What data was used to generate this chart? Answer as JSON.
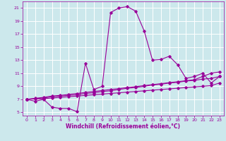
{
  "background_color": "#cce8ec",
  "grid_color": "#ffffff",
  "line_color": "#990099",
  "xlabel": "Windchill (Refroidissement éolien,°C)",
  "xlim": [
    -0.5,
    23.5
  ],
  "ylim": [
    4.5,
    22
  ],
  "yticks": [
    5,
    7,
    9,
    11,
    13,
    15,
    17,
    19,
    21
  ],
  "xticks": [
    0,
    1,
    2,
    3,
    4,
    5,
    6,
    7,
    8,
    9,
    10,
    11,
    12,
    13,
    14,
    15,
    16,
    17,
    18,
    19,
    20,
    21,
    22,
    23
  ],
  "series1_x": [
    0,
    1,
    2,
    3,
    4,
    5,
    6,
    7,
    8,
    9,
    10,
    11,
    12,
    13,
    14,
    15,
    16,
    17,
    18,
    19,
    20,
    21,
    22,
    23
  ],
  "series1_y": [
    7.0,
    6.7,
    7.0,
    5.8,
    5.6,
    5.6,
    5.1,
    12.5,
    8.5,
    9.0,
    20.3,
    21.0,
    21.2,
    20.5,
    17.5,
    13.0,
    13.1,
    13.6,
    12.3,
    10.2,
    10.5,
    11.0,
    9.5,
    10.5
  ],
  "series2_x": [
    0,
    1,
    2,
    3,
    4,
    5,
    6,
    7,
    8,
    9,
    10,
    11,
    12,
    13,
    14,
    15,
    16,
    17,
    18,
    19,
    20,
    21,
    22,
    23
  ],
  "series2_y": [
    7.0,
    7.1,
    7.2,
    7.4,
    7.5,
    7.6,
    7.7,
    7.9,
    8.0,
    8.2,
    8.3,
    8.5,
    8.7,
    8.8,
    9.0,
    9.2,
    9.3,
    9.5,
    9.6,
    9.8,
    9.9,
    10.1,
    10.2,
    10.5
  ],
  "series3_x": [
    0,
    1,
    2,
    3,
    4,
    5,
    6,
    7,
    8,
    9,
    10,
    11,
    12,
    13,
    14,
    15,
    16,
    17,
    18,
    19,
    20,
    21,
    22,
    23
  ],
  "series3_y": [
    7.0,
    7.05,
    7.1,
    7.2,
    7.3,
    7.4,
    7.5,
    7.6,
    7.7,
    7.8,
    7.9,
    8.0,
    8.1,
    8.2,
    8.3,
    8.4,
    8.5,
    8.6,
    8.7,
    8.8,
    8.9,
    9.0,
    9.1,
    9.5
  ],
  "series4_x": [
    0,
    1,
    2,
    3,
    4,
    5,
    6,
    7,
    8,
    9,
    10,
    11,
    12,
    13,
    14,
    15,
    16,
    17,
    18,
    19,
    20,
    21,
    22,
    23
  ],
  "series4_y": [
    7.0,
    7.15,
    7.3,
    7.5,
    7.6,
    7.75,
    7.9,
    8.05,
    8.2,
    8.35,
    8.5,
    8.65,
    8.8,
    8.95,
    9.1,
    9.25,
    9.4,
    9.55,
    9.7,
    9.85,
    10.0,
    10.5,
    11.0,
    11.2
  ],
  "marker_size": 1.8,
  "linewidth": 0.8,
  "tick_fontsize": 4.5,
  "xlabel_fontsize": 5.5
}
